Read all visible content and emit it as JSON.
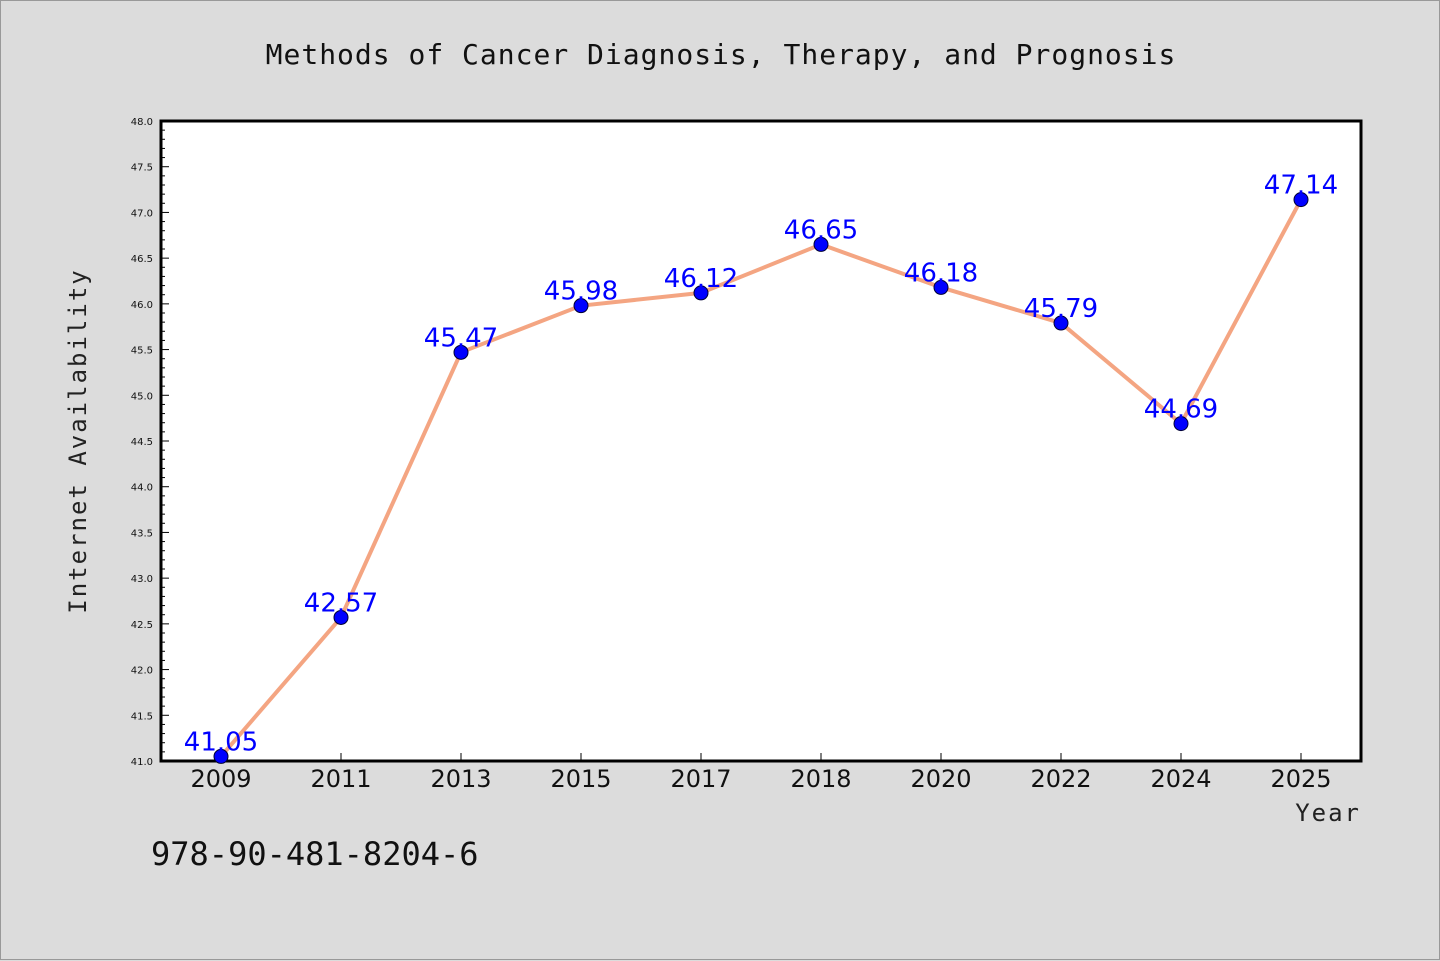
{
  "chart_data": {
    "type": "line",
    "title": "Methods of Cancer Diagnosis, Therapy, and Prognosis",
    "xlabel": "Year",
    "ylabel": "Internet Availability",
    "categories": [
      "2009",
      "2011",
      "2013",
      "2015",
      "2017",
      "2018",
      "2020",
      "2022",
      "2024",
      "2025"
    ],
    "values": [
      41.05,
      42.57,
      45.47,
      45.98,
      46.12,
      46.65,
      46.18,
      45.79,
      44.69,
      47.14
    ],
    "value_labels": [
      "41.05",
      "42.57",
      "45.47",
      "45.98",
      "46.12",
      "46.65",
      "46.18",
      "45.79",
      "44.69",
      "47.14"
    ],
    "ylim": [
      41.0,
      48.0
    ],
    "yticks": [
      "41.0",
      "41.5",
      "42.0",
      "42.5",
      "43.0",
      "43.5",
      "44.0",
      "44.5",
      "45.0",
      "45.5",
      "46.0",
      "46.5",
      "47.0",
      "47.5",
      "48.0"
    ],
    "grid": false,
    "colors": {
      "line": "#f4a582",
      "marker": "#0000ff",
      "labels": "#0000ff"
    }
  },
  "footer": {
    "isbn": "978-90-481-8204-6"
  }
}
